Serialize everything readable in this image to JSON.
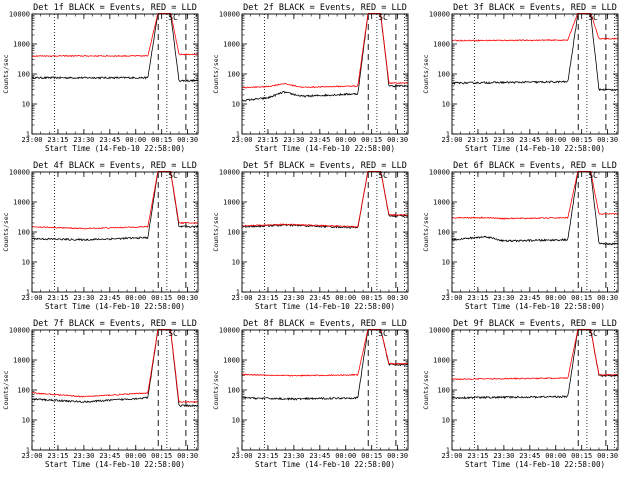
{
  "figure": {
    "xlabel": "Start Time (14-Feb-10 22:58:00)",
    "ylabel": "Counts/sec",
    "x_tick_labels": [
      "23:00",
      "23:15",
      "23:30",
      "23:45",
      "00:00",
      "00:15",
      "00:30"
    ],
    "y_tick_labels": [
      "1",
      "10",
      "100",
      "1000",
      "10000"
    ]
  },
  "colors": {
    "events": "#000000",
    "lld": "#ff0000",
    "axes": "#000000",
    "background": "#ffffff"
  },
  "chart_data": [
    {
      "type": "line",
      "title": "Det 1f BLACK = Events, RED = LLD",
      "marker": "SC",
      "ylim": [
        1,
        10000
      ],
      "xlim": [
        "23:00",
        "00:36"
      ],
      "y_scale": "log",
      "dotted_x": [
        "23:13",
        "00:18",
        "00:34"
      ],
      "dashed_x": [
        "00:13",
        "00:29"
      ],
      "series": [
        {
          "name": "Events",
          "x": [
            "23:00",
            "00:07",
            "00:13",
            "00:20",
            "00:25",
            "00:36"
          ],
          "y": [
            75,
            75,
            12000,
            12000,
            60,
            60
          ]
        },
        {
          "name": "LLD",
          "x": [
            "23:00",
            "00:07",
            "00:13",
            "00:20",
            "00:25",
            "00:36"
          ],
          "y": [
            400,
            400,
            12000,
            12000,
            450,
            450
          ]
        }
      ]
    },
    {
      "type": "line",
      "title": "Det 2f BLACK = Events, RED = LLD",
      "marker": "SC",
      "ylim": [
        1,
        10000
      ],
      "xlim": [
        "23:00",
        "00:36"
      ],
      "y_scale": "log",
      "dotted_x": [
        "23:13",
        "00:18",
        "00:34"
      ],
      "dashed_x": [
        "00:13",
        "00:29"
      ],
      "series": [
        {
          "name": "Events",
          "x": [
            "23:00",
            "23:15",
            "23:24",
            "23:35",
            "00:07",
            "00:13",
            "00:20",
            "00:25",
            "00:36"
          ],
          "y": [
            13,
            16,
            25,
            18,
            22,
            12000,
            12000,
            40,
            40
          ]
        },
        {
          "name": "LLD",
          "x": [
            "23:00",
            "23:15",
            "23:24",
            "23:35",
            "00:07",
            "00:13",
            "00:20",
            "00:25",
            "00:36"
          ],
          "y": [
            35,
            38,
            48,
            36,
            40,
            12000,
            12000,
            50,
            50
          ]
        }
      ]
    },
    {
      "type": "line",
      "title": "Det 3f BLACK = Events, RED = LLD",
      "marker": "SC",
      "ylim": [
        1,
        10000
      ],
      "xlim": [
        "23:00",
        "00:36"
      ],
      "y_scale": "log",
      "dotted_x": [
        "23:13",
        "00:18",
        "00:34"
      ],
      "dashed_x": [
        "00:13",
        "00:29"
      ],
      "series": [
        {
          "name": "Events",
          "x": [
            "23:00",
            "00:07",
            "00:13",
            "00:20",
            "00:25",
            "00:36"
          ],
          "y": [
            50,
            55,
            12000,
            12000,
            30,
            30
          ]
        },
        {
          "name": "LLD",
          "x": [
            "23:00",
            "00:07",
            "00:13",
            "00:20",
            "00:25",
            "00:36"
          ],
          "y": [
            1300,
            1350,
            12000,
            12000,
            1500,
            1500
          ]
        }
      ]
    },
    {
      "type": "line",
      "title": "Det 4f BLACK = Events, RED = LLD",
      "marker": "SC",
      "ylim": [
        1,
        10000
      ],
      "xlim": [
        "23:00",
        "00:36"
      ],
      "y_scale": "log",
      "dotted_x": [
        "23:13",
        "00:18",
        "00:34"
      ],
      "dashed_x": [
        "00:13",
        "00:29"
      ],
      "series": [
        {
          "name": "Events",
          "x": [
            "23:00",
            "23:30",
            "00:07",
            "00:13",
            "00:20",
            "00:25",
            "00:36"
          ],
          "y": [
            60,
            55,
            65,
            12000,
            12000,
            150,
            150
          ]
        },
        {
          "name": "LLD",
          "x": [
            "23:00",
            "23:30",
            "00:07",
            "00:13",
            "00:20",
            "00:25",
            "00:36"
          ],
          "y": [
            150,
            130,
            150,
            12000,
            12000,
            200,
            200
          ]
        }
      ]
    },
    {
      "type": "line",
      "title": "Det 5f BLACK = Events, RED = LLD",
      "marker": "SC",
      "ylim": [
        1,
        10000
      ],
      "xlim": [
        "23:00",
        "00:36"
      ],
      "y_scale": "log",
      "dotted_x": [
        "23:13",
        "00:18",
        "00:34"
      ],
      "dashed_x": [
        "00:13",
        "00:29"
      ],
      "series": [
        {
          "name": "Events",
          "x": [
            "23:00",
            "23:25",
            "00:07",
            "00:13",
            "00:20",
            "00:25",
            "00:36"
          ],
          "y": [
            150,
            170,
            140,
            12000,
            12000,
            350,
            350
          ]
        },
        {
          "name": "LLD",
          "x": [
            "23:00",
            "23:25",
            "00:07",
            "00:13",
            "00:20",
            "00:25",
            "00:36"
          ],
          "y": [
            160,
            180,
            150,
            12000,
            12000,
            370,
            370
          ]
        }
      ]
    },
    {
      "type": "line",
      "title": "Det 6f BLACK = Events, RED = LLD",
      "marker": "SC",
      "ylim": [
        1,
        10000
      ],
      "xlim": [
        "23:00",
        "00:36"
      ],
      "y_scale": "log",
      "dotted_x": [
        "23:13",
        "00:18",
        "00:34"
      ],
      "dashed_x": [
        "00:13",
        "00:29"
      ],
      "series": [
        {
          "name": "Events",
          "x": [
            "23:00",
            "23:20",
            "23:30",
            "00:07",
            "00:13",
            "00:20",
            "00:25",
            "00:36"
          ],
          "y": [
            55,
            70,
            50,
            55,
            12000,
            12000,
            40,
            40
          ]
        },
        {
          "name": "LLD",
          "x": [
            "23:00",
            "23:20",
            "23:30",
            "00:07",
            "00:13",
            "00:20",
            "00:25",
            "00:36"
          ],
          "y": [
            300,
            300,
            280,
            300,
            12000,
            12000,
            400,
            400
          ]
        }
      ]
    },
    {
      "type": "line",
      "title": "Det 7f BLACK = Events, RED = LLD",
      "marker": "SC",
      "ylim": [
        1,
        10000
      ],
      "xlim": [
        "23:00",
        "00:36"
      ],
      "y_scale": "log",
      "dotted_x": [
        "23:13",
        "00:18",
        "00:34"
      ],
      "dashed_x": [
        "00:13",
        "00:29"
      ],
      "series": [
        {
          "name": "Events",
          "x": [
            "23:00",
            "23:30",
            "00:07",
            "00:13",
            "00:20",
            "00:25",
            "00:36"
          ],
          "y": [
            50,
            40,
            55,
            12000,
            12000,
            30,
            30
          ]
        },
        {
          "name": "LLD",
          "x": [
            "23:00",
            "23:30",
            "00:07",
            "00:13",
            "00:20",
            "00:25",
            "00:36"
          ],
          "y": [
            80,
            60,
            80,
            12000,
            12000,
            40,
            40
          ]
        }
      ]
    },
    {
      "type": "line",
      "title": "Det 8f BLACK = Events, RED = LLD",
      "marker": "SC",
      "ylim": [
        1,
        10000
      ],
      "xlim": [
        "23:00",
        "00:36"
      ],
      "y_scale": "log",
      "dotted_x": [
        "23:13",
        "00:18",
        "00:34"
      ],
      "dashed_x": [
        "00:13",
        "00:29"
      ],
      "series": [
        {
          "name": "Events",
          "x": [
            "23:00",
            "23:30",
            "00:07",
            "00:13",
            "00:20",
            "00:25",
            "00:36"
          ],
          "y": [
            55,
            50,
            55,
            12000,
            12000,
            700,
            700
          ]
        },
        {
          "name": "LLD",
          "x": [
            "23:00",
            "23:30",
            "00:07",
            "00:13",
            "00:20",
            "00:25",
            "00:36"
          ],
          "y": [
            330,
            300,
            320,
            12000,
            12000,
            750,
            750
          ]
        }
      ]
    },
    {
      "type": "line",
      "title": "Det 9f BLACK = Events, RED = LLD",
      "marker": "SC",
      "ylim": [
        1,
        10000
      ],
      "xlim": [
        "23:00",
        "00:36"
      ],
      "y_scale": "log",
      "dotted_x": [
        "23:13",
        "00:18",
        "00:34"
      ],
      "dashed_x": [
        "00:13",
        "00:29"
      ],
      "series": [
        {
          "name": "Events",
          "x": [
            "23:00",
            "00:07",
            "00:13",
            "00:20",
            "00:25",
            "00:36"
          ],
          "y": [
            55,
            60,
            12000,
            12000,
            300,
            300
          ]
        },
        {
          "name": "LLD",
          "x": [
            "23:00",
            "00:07",
            "00:13",
            "00:20",
            "00:25",
            "00:36"
          ],
          "y": [
            230,
            250,
            12000,
            12000,
            320,
            320
          ]
        }
      ]
    }
  ]
}
